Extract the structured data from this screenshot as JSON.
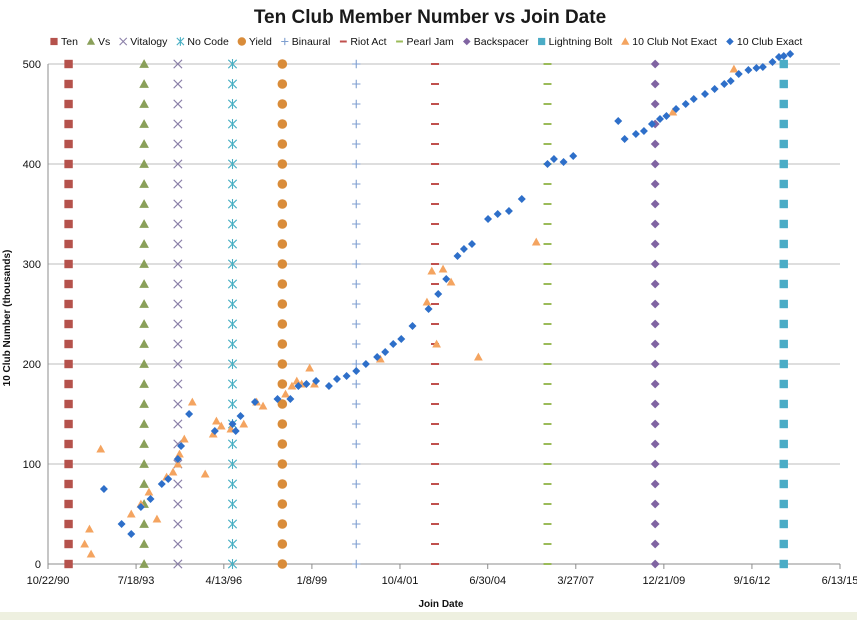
{
  "chart_data": {
    "type": "scatter",
    "title": "Ten Club Member Number vs Join Date",
    "xlabel": "Join Date",
    "ylabel": "10 Club Number (thousands)",
    "xlim": [
      1990.81,
      2015.45
    ],
    "ylim": [
      0,
      500
    ],
    "y_ticks": [
      0,
      100,
      200,
      300,
      400,
      500
    ],
    "x_ticks": [
      {
        "label": "10/22/90",
        "value": 1990.81
      },
      {
        "label": "7/18/93",
        "value": 1993.55
      },
      {
        "label": "4/13/96",
        "value": 1996.28
      },
      {
        "label": "1/8/99",
        "value": 1999.02
      },
      {
        "label": "10/4/01",
        "value": 2001.76
      },
      {
        "label": "6/30/04",
        "value": 2004.49
      },
      {
        "label": "3/27/07",
        "value": 2007.23
      },
      {
        "label": "12/21/09",
        "value": 2009.97
      },
      {
        "label": "9/16/12",
        "value": 2012.71
      },
      {
        "label": "6/13/15",
        "value": 2015.45
      }
    ],
    "legend_position": "top",
    "album_series": [
      {
        "name": "Ten",
        "x": 1991.45,
        "color": "#b5524c",
        "marker": "square"
      },
      {
        "name": "Vs",
        "x": 1993.8,
        "color": "#8aa05a",
        "marker": "triangle"
      },
      {
        "name": "Vitalogy",
        "x": 1994.85,
        "color": "#8a7fa8",
        "marker": "x"
      },
      {
        "name": "No Code",
        "x": 1996.55,
        "color": "#4ab0c4",
        "marker": "star"
      },
      {
        "name": "Yield",
        "x": 1998.1,
        "color": "#d98c3a",
        "marker": "circle"
      },
      {
        "name": "Binaural",
        "x": 2000.4,
        "color": "#7f9fd0",
        "marker": "plus"
      },
      {
        "name": "Riot Act",
        "x": 2002.85,
        "color": "#c0504d",
        "marker": "dash"
      },
      {
        "name": "Pearl Jam",
        "x": 2006.35,
        "color": "#9bbb59",
        "marker": "dash"
      },
      {
        "name": "Backspacer",
        "x": 2009.7,
        "color": "#8064a2",
        "marker": "diamond"
      },
      {
        "name": "Lightning Bolt",
        "x": 2013.7,
        "color": "#4bacc6",
        "marker": "square"
      }
    ],
    "album_marker_values": [
      0,
      20,
      40,
      60,
      80,
      100,
      120,
      140,
      160,
      180,
      200,
      220,
      240,
      260,
      280,
      300,
      320,
      340,
      360,
      380,
      400,
      420,
      440,
      460,
      480,
      500
    ],
    "series": [
      {
        "name": "10 Club Not Exact",
        "color": "#f4a460",
        "marker": "triangle",
        "points": [
          [
            1991.95,
            20
          ],
          [
            1992.1,
            35
          ],
          [
            1992.15,
            10
          ],
          [
            1992.45,
            115
          ],
          [
            1993.4,
            50
          ],
          [
            1993.7,
            60
          ],
          [
            1993.95,
            72
          ],
          [
            1994.2,
            45
          ],
          [
            1994.5,
            87
          ],
          [
            1994.7,
            92
          ],
          [
            1994.85,
            100
          ],
          [
            1994.9,
            110
          ],
          [
            1995.05,
            125
          ],
          [
            1995.3,
            162
          ],
          [
            1995.7,
            90
          ],
          [
            1995.95,
            130
          ],
          [
            1996.05,
            143
          ],
          [
            1996.2,
            138
          ],
          [
            1996.5,
            135
          ],
          [
            1996.9,
            140
          ],
          [
            1997.3,
            162
          ],
          [
            1997.5,
            158
          ],
          [
            1998.2,
            170
          ],
          [
            1998.4,
            178
          ],
          [
            1998.55,
            183
          ],
          [
            1998.7,
            180
          ],
          [
            1998.95,
            196
          ],
          [
            1999.1,
            180
          ],
          [
            2001.15,
            205
          ],
          [
            2002.6,
            262
          ],
          [
            2002.75,
            293
          ],
          [
            2002.9,
            220
          ],
          [
            2003.1,
            295
          ],
          [
            2003.35,
            282
          ],
          [
            2004.2,
            207
          ],
          [
            2006.0,
            322
          ],
          [
            2010.25,
            452
          ],
          [
            2012.15,
            495
          ]
        ]
      },
      {
        "name": "10 Club Exact",
        "color": "#2e6fc9",
        "marker": "diamond",
        "points": [
          [
            1992.55,
            75
          ],
          [
            1993.1,
            40
          ],
          [
            1993.4,
            30
          ],
          [
            1993.7,
            57
          ],
          [
            1994.0,
            65
          ],
          [
            1994.35,
            80
          ],
          [
            1994.55,
            85
          ],
          [
            1994.85,
            105
          ],
          [
            1994.95,
            118
          ],
          [
            1995.2,
            150
          ],
          [
            1996.0,
            133
          ],
          [
            1996.55,
            140
          ],
          [
            1996.65,
            133
          ],
          [
            1996.8,
            148
          ],
          [
            1997.25,
            162
          ],
          [
            1997.95,
            165
          ],
          [
            1998.35,
            165
          ],
          [
            1998.6,
            178
          ],
          [
            1998.85,
            180
          ],
          [
            1999.15,
            183
          ],
          [
            1999.55,
            178
          ],
          [
            1999.8,
            185
          ],
          [
            2000.1,
            188
          ],
          [
            2000.4,
            193
          ],
          [
            2000.7,
            200
          ],
          [
            2001.05,
            207
          ],
          [
            2001.3,
            212
          ],
          [
            2001.55,
            220
          ],
          [
            2001.8,
            225
          ],
          [
            2002.15,
            238
          ],
          [
            2002.65,
            255
          ],
          [
            2002.95,
            270
          ],
          [
            2003.2,
            285
          ],
          [
            2003.55,
            308
          ],
          [
            2003.75,
            315
          ],
          [
            2004.0,
            320
          ],
          [
            2004.5,
            345
          ],
          [
            2004.8,
            350
          ],
          [
            2005.15,
            353
          ],
          [
            2005.55,
            365
          ],
          [
            2006.35,
            400
          ],
          [
            2006.55,
            405
          ],
          [
            2006.85,
            402
          ],
          [
            2007.15,
            408
          ],
          [
            2008.55,
            443
          ],
          [
            2008.75,
            425
          ],
          [
            2009.1,
            430
          ],
          [
            2009.35,
            433
          ],
          [
            2009.6,
            440
          ],
          [
            2009.85,
            445
          ],
          [
            2010.05,
            448
          ],
          [
            2010.35,
            455
          ],
          [
            2010.65,
            460
          ],
          [
            2010.9,
            465
          ],
          [
            2011.25,
            470
          ],
          [
            2011.55,
            475
          ],
          [
            2011.85,
            480
          ],
          [
            2012.05,
            483
          ],
          [
            2012.3,
            490
          ],
          [
            2012.6,
            494
          ],
          [
            2012.85,
            496
          ],
          [
            2013.05,
            497
          ],
          [
            2013.35,
            502
          ],
          [
            2013.55,
            507
          ],
          [
            2013.7,
            508
          ],
          [
            2013.9,
            510
          ]
        ]
      }
    ]
  }
}
